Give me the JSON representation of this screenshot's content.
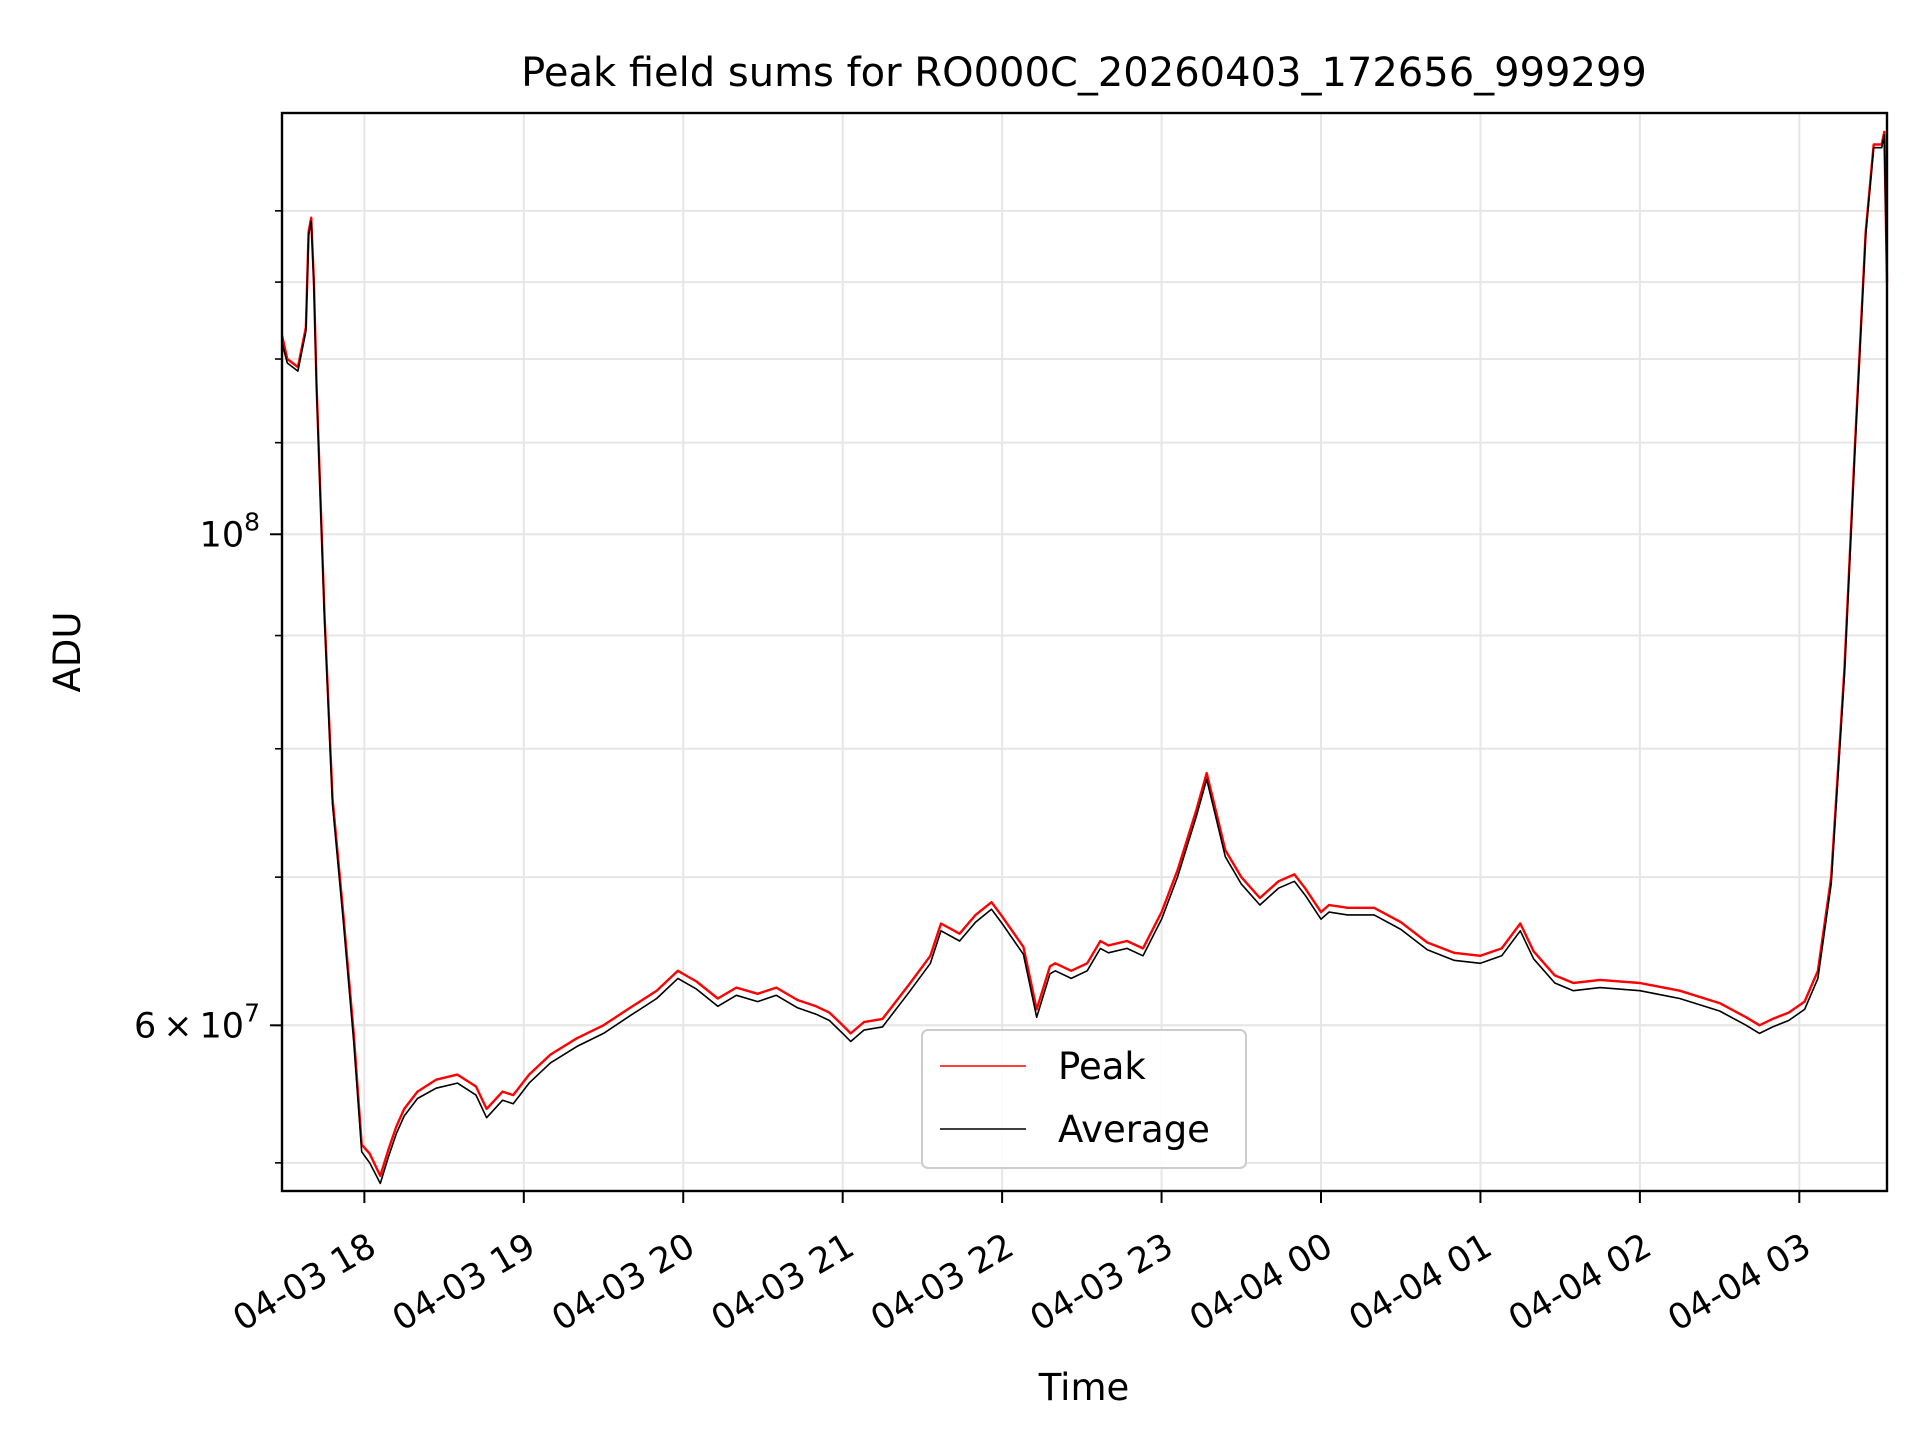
{
  "chart_data": {
    "type": "line",
    "title": "Peak field sums for RO000C_20260403_172656_999299",
    "xlabel": "Time",
    "ylabel": "ADU",
    "y_scale": "log",
    "ylim": [
      50500000,
      155000000
    ],
    "xlim": [
      "2026-04-03 17:29",
      "2026-04-04 03:33"
    ],
    "grid": true,
    "legend_position": "lower-center",
    "x_ticks": [
      {
        "t": "2026-04-03 18:00",
        "label": "04-03 18"
      },
      {
        "t": "2026-04-03 19:00",
        "label": "04-03 19"
      },
      {
        "t": "2026-04-03 20:00",
        "label": "04-03 20"
      },
      {
        "t": "2026-04-03 21:00",
        "label": "04-03 21"
      },
      {
        "t": "2026-04-03 22:00",
        "label": "04-03 22"
      },
      {
        "t": "2026-04-03 23:00",
        "label": "04-03 23"
      },
      {
        "t": "2026-04-04 00:00",
        "label": "04-04 00"
      },
      {
        "t": "2026-04-04 01:00",
        "label": "04-04 01"
      },
      {
        "t": "2026-04-04 02:00",
        "label": "04-04 02"
      },
      {
        "t": "2026-04-04 03:00",
        "label": "04-04 03"
      }
    ],
    "y_major_ticks": [
      {
        "value": 100000000,
        "base": "10",
        "exp": "8"
      },
      {
        "value": 60000000,
        "mantissa": "6",
        "base": "10",
        "exp": "7"
      }
    ],
    "y_minor_ticks": [
      52000000,
      60000000,
      70000000,
      80000000,
      90000000,
      110000000,
      120000000,
      130000000,
      140000000
    ],
    "series": [
      {
        "name": "Peak",
        "color": "#ff0000",
        "x": [
          "2026-04-03 17:29",
          "2026-04-03 17:31",
          "2026-04-03 17:35",
          "2026-04-03 17:38",
          "2026-04-03 17:39",
          "2026-04-03 17:40",
          "2026-04-03 17:41",
          "2026-04-03 17:42",
          "2026-04-03 17:45",
          "2026-04-03 17:48",
          "2026-04-03 17:52",
          "2026-04-03 17:56",
          "2026-04-03 17:59",
          "2026-04-03 18:02",
          "2026-04-03 18:06",
          "2026-04-03 18:09",
          "2026-04-03 18:12",
          "2026-04-03 18:15",
          "2026-04-03 18:20",
          "2026-04-03 18:27",
          "2026-04-03 18:35",
          "2026-04-03 18:42",
          "2026-04-03 18:46",
          "2026-04-03 18:52",
          "2026-04-03 18:56",
          "2026-04-03 19:02",
          "2026-04-03 19:10",
          "2026-04-03 19:20",
          "2026-04-03 19:30",
          "2026-04-03 19:40",
          "2026-04-03 19:50",
          "2026-04-03 19:58",
          "2026-04-03 20:05",
          "2026-04-03 20:13",
          "2026-04-03 20:20",
          "2026-04-03 20:28",
          "2026-04-03 20:35",
          "2026-04-03 20:43",
          "2026-04-03 20:50",
          "2026-04-03 20:55",
          "2026-04-03 21:00",
          "2026-04-03 21:03",
          "2026-04-03 21:08",
          "2026-04-03 21:15",
          "2026-04-03 21:25",
          "2026-04-03 21:33",
          "2026-04-03 21:37",
          "2026-04-03 21:44",
          "2026-04-03 21:50",
          "2026-04-03 21:56",
          "2026-04-03 22:00",
          "2026-04-03 22:08",
          "2026-04-03 22:13",
          "2026-04-03 22:18",
          "2026-04-03 22:20",
          "2026-04-03 22:26",
          "2026-04-03 22:32",
          "2026-04-03 22:37",
          "2026-04-03 22:40",
          "2026-04-03 22:47",
          "2026-04-03 22:53",
          "2026-04-03 23:00",
          "2026-04-03 23:06",
          "2026-04-03 23:13",
          "2026-04-03 23:17",
          "2026-04-03 23:21",
          "2026-04-03 23:24",
          "2026-04-03 23:30",
          "2026-04-03 23:37",
          "2026-04-03 23:44",
          "2026-04-03 23:50",
          "2026-04-03 23:54",
          "2026-04-04 00:00",
          "2026-04-04 00:03",
          "2026-04-04 00:10",
          "2026-04-04 00:20",
          "2026-04-04 00:30",
          "2026-04-04 00:40",
          "2026-04-04 00:50",
          "2026-04-04 01:00",
          "2026-04-04 01:08",
          "2026-04-04 01:15",
          "2026-04-04 01:20",
          "2026-04-04 01:28",
          "2026-04-04 01:35",
          "2026-04-04 01:45",
          "2026-04-04 02:00",
          "2026-04-04 02:15",
          "2026-04-04 02:30",
          "2026-04-04 02:40",
          "2026-04-04 02:45",
          "2026-04-04 02:50",
          "2026-04-04 02:56",
          "2026-04-04 03:02",
          "2026-04-04 03:07",
          "2026-04-04 03:12",
          "2026-04-04 03:17",
          "2026-04-04 03:21",
          "2026-04-04 03:25",
          "2026-04-04 03:28",
          "2026-04-04 03:31",
          "2026-04-04 03:32",
          "2026-04-04 03:33"
        ],
        "values": [
          123000000,
          120000000,
          119000000,
          124000000,
          137000000,
          139000000,
          130000000,
          117000000,
          92000000,
          76000000,
          67500000,
          59500000,
          53000000,
          52500000,
          51300000,
          52700000,
          54000000,
          55000000,
          56000000,
          56700000,
          57000000,
          56300000,
          55000000,
          56000000,
          55800000,
          57000000,
          58200000,
          59200000,
          60000000,
          61100000,
          62200000,
          63500000,
          62800000,
          61700000,
          62400000,
          62000000,
          62400000,
          61600000,
          61200000,
          60800000,
          60000000,
          59500000,
          60200000,
          60400000,
          62600000,
          64500000,
          66700000,
          66000000,
          67300000,
          68200000,
          67200000,
          65100000,
          61000000,
          63800000,
          64000000,
          63500000,
          64000000,
          65500000,
          65200000,
          65500000,
          65000000,
          67500000,
          70500000,
          75000000,
          78000000,
          74500000,
          72000000,
          70000000,
          68500000,
          69700000,
          70200000,
          69200000,
          67500000,
          68000000,
          67800000,
          67800000,
          66800000,
          65400000,
          64700000,
          64500000,
          65000000,
          66700000,
          64800000,
          63200000,
          62700000,
          62900000,
          62700000,
          62200000,
          61400000,
          60500000,
          60000000,
          60400000,
          60800000,
          61500000,
          63500000,
          70000000,
          87000000,
          110000000,
          137000000,
          150000000,
          150000000,
          152000000,
          130000000
        ]
      },
      {
        "name": "Average",
        "color": "#000000",
        "x": [
          "2026-04-03 17:29",
          "2026-04-03 17:31",
          "2026-04-03 17:35",
          "2026-04-03 17:38",
          "2026-04-03 17:39",
          "2026-04-03 17:40",
          "2026-04-03 17:41",
          "2026-04-03 17:42",
          "2026-04-03 17:45",
          "2026-04-03 17:48",
          "2026-04-03 17:52",
          "2026-04-03 17:56",
          "2026-04-03 17:59",
          "2026-04-03 18:02",
          "2026-04-03 18:06",
          "2026-04-03 18:09",
          "2026-04-03 18:12",
          "2026-04-03 18:15",
          "2026-04-03 18:20",
          "2026-04-03 18:27",
          "2026-04-03 18:35",
          "2026-04-03 18:42",
          "2026-04-03 18:46",
          "2026-04-03 18:52",
          "2026-04-03 18:56",
          "2026-04-03 19:02",
          "2026-04-03 19:10",
          "2026-04-03 19:20",
          "2026-04-03 19:30",
          "2026-04-03 19:40",
          "2026-04-03 19:50",
          "2026-04-03 19:58",
          "2026-04-03 20:05",
          "2026-04-03 20:13",
          "2026-04-03 20:20",
          "2026-04-03 20:28",
          "2026-04-03 20:35",
          "2026-04-03 20:43",
          "2026-04-03 20:50",
          "2026-04-03 20:55",
          "2026-04-03 21:00",
          "2026-04-03 21:03",
          "2026-04-03 21:08",
          "2026-04-03 21:15",
          "2026-04-03 21:25",
          "2026-04-03 21:33",
          "2026-04-03 21:37",
          "2026-04-03 21:44",
          "2026-04-03 21:50",
          "2026-04-03 21:56",
          "2026-04-03 22:00",
          "2026-04-03 22:08",
          "2026-04-03 22:13",
          "2026-04-03 22:18",
          "2026-04-03 22:20",
          "2026-04-03 22:26",
          "2026-04-03 22:32",
          "2026-04-03 22:37",
          "2026-04-03 22:40",
          "2026-04-03 22:47",
          "2026-04-03 22:53",
          "2026-04-03 23:00",
          "2026-04-03 23:06",
          "2026-04-03 23:13",
          "2026-04-03 23:17",
          "2026-04-03 23:21",
          "2026-04-03 23:24",
          "2026-04-03 23:30",
          "2026-04-03 23:37",
          "2026-04-03 23:44",
          "2026-04-03 23:50",
          "2026-04-03 23:54",
          "2026-04-04 00:00",
          "2026-04-04 00:03",
          "2026-04-04 00:10",
          "2026-04-04 00:20",
          "2026-04-04 00:30",
          "2026-04-04 00:40",
          "2026-04-04 00:50",
          "2026-04-04 01:00",
          "2026-04-04 01:08",
          "2026-04-04 01:15",
          "2026-04-04 01:20",
          "2026-04-04 01:28",
          "2026-04-04 01:35",
          "2026-04-04 01:45",
          "2026-04-04 02:00",
          "2026-04-04 02:15",
          "2026-04-04 02:30",
          "2026-04-04 02:40",
          "2026-04-04 02:45",
          "2026-04-04 02:50",
          "2026-04-04 02:56",
          "2026-04-04 03:02",
          "2026-04-04 03:07",
          "2026-04-04 03:12",
          "2026-04-04 03:17",
          "2026-04-04 03:21",
          "2026-04-04 03:25",
          "2026-04-04 03:28",
          "2026-04-04 03:31",
          "2026-04-04 03:32",
          "2026-04-04 03:33"
        ],
        "values": [
          122000000,
          119500000,
          118500000,
          123500000,
          136500000,
          138500000,
          129500000,
          116500000,
          91500000,
          75500000,
          67000000,
          59000000,
          52600000,
          52000000,
          50900000,
          52300000,
          53600000,
          54600000,
          55600000,
          56200000,
          56500000,
          55800000,
          54500000,
          55500000,
          55300000,
          56500000,
          57700000,
          58700000,
          59500000,
          60600000,
          61700000,
          63000000,
          62300000,
          61200000,
          61900000,
          61500000,
          61900000,
          61100000,
          60700000,
          60300000,
          59500000,
          59000000,
          59700000,
          59900000,
          62100000,
          64000000,
          66200000,
          65500000,
          66800000,
          67700000,
          66700000,
          64600000,
          60500000,
          63300000,
          63500000,
          63000000,
          63500000,
          65000000,
          64700000,
          65000000,
          64500000,
          67000000,
          70000000,
          74500000,
          77500000,
          74000000,
          71500000,
          69500000,
          68000000,
          69200000,
          69700000,
          68700000,
          67000000,
          67500000,
          67300000,
          67300000,
          66300000,
          64900000,
          64200000,
          64000000,
          64500000,
          66200000,
          64300000,
          62700000,
          62200000,
          62400000,
          62200000,
          61700000,
          60900000,
          60000000,
          59500000,
          59900000,
          60300000,
          61000000,
          63000000,
          69500000,
          86500000,
          109500000,
          136500000,
          149500000,
          149500000,
          151500000,
          129500000
        ]
      }
    ]
  }
}
